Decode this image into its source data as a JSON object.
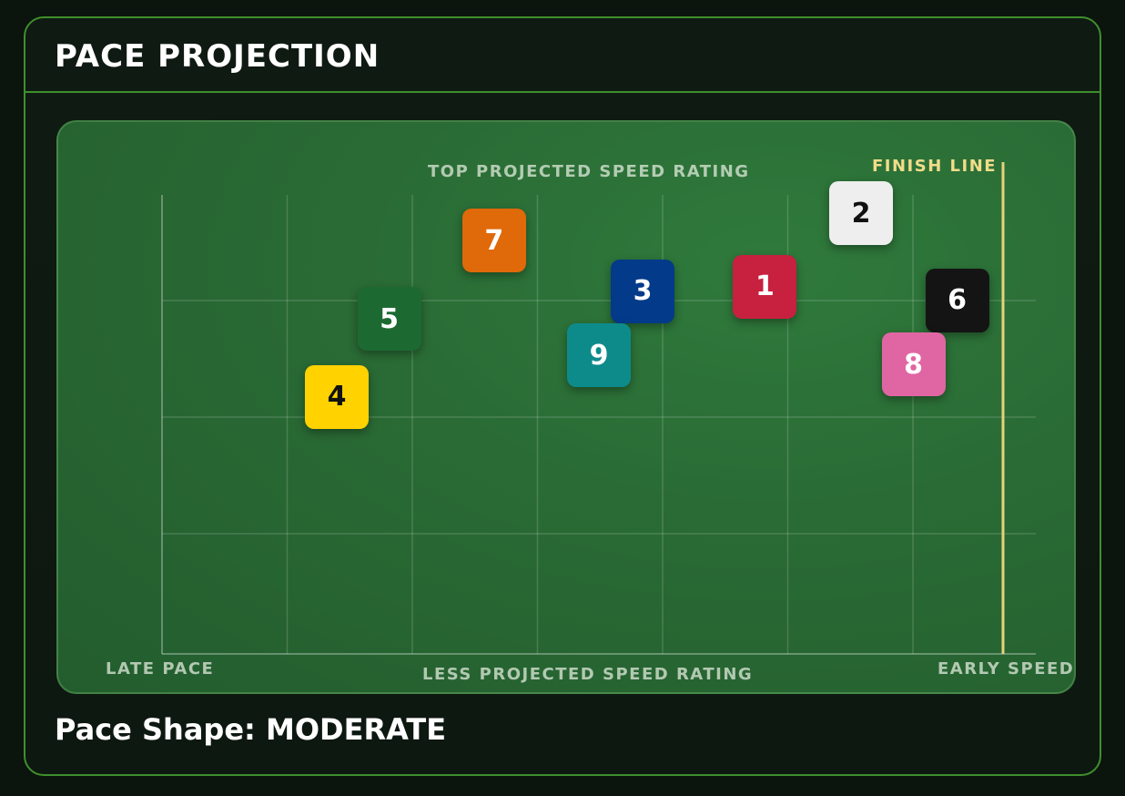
{
  "header": {
    "title": "PACE PROJECTION"
  },
  "chart_data": {
    "type": "scatter",
    "x_axis": {
      "left_label": "LATE PACE",
      "center_label": "LESS PROJECTED SPEED RATING",
      "right_label": "EARLY SPEED"
    },
    "y_axis": {
      "top_label": "TOP PROJECTED SPEED RATING"
    },
    "finish_line_label": "FINISH LINE",
    "grid": true,
    "xlim": [
      0,
      10
    ],
    "ylim": [
      0,
      10
    ],
    "points": [
      {
        "label": "1",
        "x": 6.9,
        "y": 8.0,
        "color": "#c8203f",
        "text_color": "#ffffff"
      },
      {
        "label": "2",
        "x": 8.0,
        "y": 9.6,
        "color": "#eeeeee",
        "text_color": "#111111"
      },
      {
        "label": "3",
        "x": 5.5,
        "y": 7.9,
        "color": "#033a8a",
        "text_color": "#ffffff"
      },
      {
        "label": "4",
        "x": 2.0,
        "y": 5.6,
        "color": "#ffd200",
        "text_color": "#111111"
      },
      {
        "label": "5",
        "x": 2.6,
        "y": 7.3,
        "color": "#1c6a32",
        "text_color": "#ffffff"
      },
      {
        "label": "6",
        "x": 9.1,
        "y": 7.7,
        "color": "#141414",
        "text_color": "#ffffff"
      },
      {
        "label": "7",
        "x": 3.8,
        "y": 9.0,
        "color": "#e0690a",
        "text_color": "#ffffff"
      },
      {
        "label": "8",
        "x": 8.6,
        "y": 6.3,
        "color": "#e066a3",
        "text_color": "#ffffff"
      },
      {
        "label": "9",
        "x": 5.0,
        "y": 6.5,
        "color": "#0d8b8b",
        "text_color": "#ffffff"
      }
    ]
  },
  "footer": {
    "pace_shape": "Pace Shape: MODERATE"
  }
}
